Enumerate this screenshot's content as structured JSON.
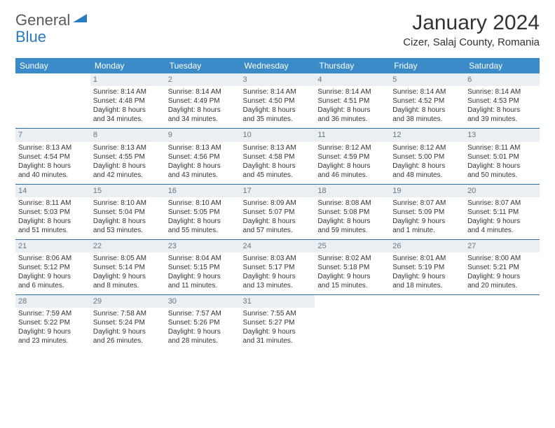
{
  "brand": {
    "part1": "General",
    "part2": "Blue"
  },
  "title": "January 2024",
  "location": "Cizer, Salaj County, Romania",
  "colors": {
    "header_bg": "#3b8bc8",
    "header_text": "#ffffff",
    "rule": "#2b6ea8",
    "daynum_bg": "#e9eff3",
    "daynum_text": "#6a7680",
    "brand_blue": "#2b7bbf",
    "body_text": "#333333",
    "page_bg": "#ffffff"
  },
  "weekdays": [
    "Sunday",
    "Monday",
    "Tuesday",
    "Wednesday",
    "Thursday",
    "Friday",
    "Saturday"
  ],
  "weeks": [
    [
      null,
      {
        "n": "1",
        "sr": "Sunrise: 8:14 AM",
        "ss": "Sunset: 4:48 PM",
        "d1": "Daylight: 8 hours",
        "d2": "and 34 minutes."
      },
      {
        "n": "2",
        "sr": "Sunrise: 8:14 AM",
        "ss": "Sunset: 4:49 PM",
        "d1": "Daylight: 8 hours",
        "d2": "and 34 minutes."
      },
      {
        "n": "3",
        "sr": "Sunrise: 8:14 AM",
        "ss": "Sunset: 4:50 PM",
        "d1": "Daylight: 8 hours",
        "d2": "and 35 minutes."
      },
      {
        "n": "4",
        "sr": "Sunrise: 8:14 AM",
        "ss": "Sunset: 4:51 PM",
        "d1": "Daylight: 8 hours",
        "d2": "and 36 minutes."
      },
      {
        "n": "5",
        "sr": "Sunrise: 8:14 AM",
        "ss": "Sunset: 4:52 PM",
        "d1": "Daylight: 8 hours",
        "d2": "and 38 minutes."
      },
      {
        "n": "6",
        "sr": "Sunrise: 8:14 AM",
        "ss": "Sunset: 4:53 PM",
        "d1": "Daylight: 8 hours",
        "d2": "and 39 minutes."
      }
    ],
    [
      {
        "n": "7",
        "sr": "Sunrise: 8:13 AM",
        "ss": "Sunset: 4:54 PM",
        "d1": "Daylight: 8 hours",
        "d2": "and 40 minutes."
      },
      {
        "n": "8",
        "sr": "Sunrise: 8:13 AM",
        "ss": "Sunset: 4:55 PM",
        "d1": "Daylight: 8 hours",
        "d2": "and 42 minutes."
      },
      {
        "n": "9",
        "sr": "Sunrise: 8:13 AM",
        "ss": "Sunset: 4:56 PM",
        "d1": "Daylight: 8 hours",
        "d2": "and 43 minutes."
      },
      {
        "n": "10",
        "sr": "Sunrise: 8:13 AM",
        "ss": "Sunset: 4:58 PM",
        "d1": "Daylight: 8 hours",
        "d2": "and 45 minutes."
      },
      {
        "n": "11",
        "sr": "Sunrise: 8:12 AM",
        "ss": "Sunset: 4:59 PM",
        "d1": "Daylight: 8 hours",
        "d2": "and 46 minutes."
      },
      {
        "n": "12",
        "sr": "Sunrise: 8:12 AM",
        "ss": "Sunset: 5:00 PM",
        "d1": "Daylight: 8 hours",
        "d2": "and 48 minutes."
      },
      {
        "n": "13",
        "sr": "Sunrise: 8:11 AM",
        "ss": "Sunset: 5:01 PM",
        "d1": "Daylight: 8 hours",
        "d2": "and 50 minutes."
      }
    ],
    [
      {
        "n": "14",
        "sr": "Sunrise: 8:11 AM",
        "ss": "Sunset: 5:03 PM",
        "d1": "Daylight: 8 hours",
        "d2": "and 51 minutes."
      },
      {
        "n": "15",
        "sr": "Sunrise: 8:10 AM",
        "ss": "Sunset: 5:04 PM",
        "d1": "Daylight: 8 hours",
        "d2": "and 53 minutes."
      },
      {
        "n": "16",
        "sr": "Sunrise: 8:10 AM",
        "ss": "Sunset: 5:05 PM",
        "d1": "Daylight: 8 hours",
        "d2": "and 55 minutes."
      },
      {
        "n": "17",
        "sr": "Sunrise: 8:09 AM",
        "ss": "Sunset: 5:07 PM",
        "d1": "Daylight: 8 hours",
        "d2": "and 57 minutes."
      },
      {
        "n": "18",
        "sr": "Sunrise: 8:08 AM",
        "ss": "Sunset: 5:08 PM",
        "d1": "Daylight: 8 hours",
        "d2": "and 59 minutes."
      },
      {
        "n": "19",
        "sr": "Sunrise: 8:07 AM",
        "ss": "Sunset: 5:09 PM",
        "d1": "Daylight: 9 hours",
        "d2": "and 1 minute."
      },
      {
        "n": "20",
        "sr": "Sunrise: 8:07 AM",
        "ss": "Sunset: 5:11 PM",
        "d1": "Daylight: 9 hours",
        "d2": "and 4 minutes."
      }
    ],
    [
      {
        "n": "21",
        "sr": "Sunrise: 8:06 AM",
        "ss": "Sunset: 5:12 PM",
        "d1": "Daylight: 9 hours",
        "d2": "and 6 minutes."
      },
      {
        "n": "22",
        "sr": "Sunrise: 8:05 AM",
        "ss": "Sunset: 5:14 PM",
        "d1": "Daylight: 9 hours",
        "d2": "and 8 minutes."
      },
      {
        "n": "23",
        "sr": "Sunrise: 8:04 AM",
        "ss": "Sunset: 5:15 PM",
        "d1": "Daylight: 9 hours",
        "d2": "and 11 minutes."
      },
      {
        "n": "24",
        "sr": "Sunrise: 8:03 AM",
        "ss": "Sunset: 5:17 PM",
        "d1": "Daylight: 9 hours",
        "d2": "and 13 minutes."
      },
      {
        "n": "25",
        "sr": "Sunrise: 8:02 AM",
        "ss": "Sunset: 5:18 PM",
        "d1": "Daylight: 9 hours",
        "d2": "and 15 minutes."
      },
      {
        "n": "26",
        "sr": "Sunrise: 8:01 AM",
        "ss": "Sunset: 5:19 PM",
        "d1": "Daylight: 9 hours",
        "d2": "and 18 minutes."
      },
      {
        "n": "27",
        "sr": "Sunrise: 8:00 AM",
        "ss": "Sunset: 5:21 PM",
        "d1": "Daylight: 9 hours",
        "d2": "and 20 minutes."
      }
    ],
    [
      {
        "n": "28",
        "sr": "Sunrise: 7:59 AM",
        "ss": "Sunset: 5:22 PM",
        "d1": "Daylight: 9 hours",
        "d2": "and 23 minutes."
      },
      {
        "n": "29",
        "sr": "Sunrise: 7:58 AM",
        "ss": "Sunset: 5:24 PM",
        "d1": "Daylight: 9 hours",
        "d2": "and 26 minutes."
      },
      {
        "n": "30",
        "sr": "Sunrise: 7:57 AM",
        "ss": "Sunset: 5:26 PM",
        "d1": "Daylight: 9 hours",
        "d2": "and 28 minutes."
      },
      {
        "n": "31",
        "sr": "Sunrise: 7:55 AM",
        "ss": "Sunset: 5:27 PM",
        "d1": "Daylight: 9 hours",
        "d2": "and 31 minutes."
      },
      null,
      null,
      null
    ]
  ]
}
